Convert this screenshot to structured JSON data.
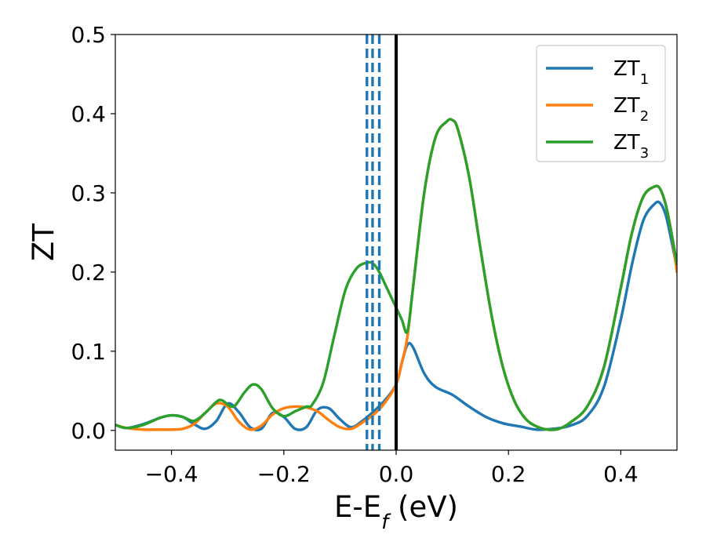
{
  "chart_data": {
    "type": "line",
    "title": "",
    "xlabel": {
      "main": "E-E",
      "subscript": "f",
      "suffix": " (eV)"
    },
    "ylabel": "ZT",
    "xlim": [
      -0.5,
      0.5
    ],
    "ylim": [
      -0.025,
      0.5
    ],
    "x_ticks": [
      -0.4,
      -0.2,
      0.0,
      0.2,
      0.4
    ],
    "x_tick_labels": [
      "−0.4",
      "−0.2",
      "0.0",
      "0.2",
      "0.4"
    ],
    "y_ticks": [
      0.0,
      0.1,
      0.2,
      0.3,
      0.4,
      0.5
    ],
    "y_tick_labels": [
      "0.0",
      "0.1",
      "0.2",
      "0.3",
      "0.4",
      "0.5"
    ],
    "grid": false,
    "legend_position": "top-right",
    "colors": {
      "ZT1": "#1f77b4",
      "ZT2": "#ff7f0e",
      "ZT3": "#2ca02c",
      "fermi_line": "#000000",
      "dashed_lines": "#1f77b4"
    },
    "reference_lines": {
      "solid_vertical": {
        "x": 0.0,
        "color": "#000000"
      },
      "dashed_vertical": [
        {
          "x": -0.052,
          "color": "#1f77b4"
        },
        {
          "x": -0.042,
          "color": "#1f77b4"
        },
        {
          "x": -0.03,
          "color": "#1f77b4"
        }
      ]
    },
    "series": [
      {
        "name": "ZT1",
        "label_main": "ZT",
        "label_sub": "1",
        "color": "#1f77b4",
        "x": [
          -0.5,
          -0.48,
          -0.45,
          -0.42,
          -0.4,
          -0.38,
          -0.36,
          -0.34,
          -0.32,
          -0.3,
          -0.28,
          -0.26,
          -0.24,
          -0.22,
          -0.2,
          -0.18,
          -0.16,
          -0.14,
          -0.12,
          -0.1,
          -0.08,
          -0.06,
          -0.04,
          -0.02,
          0.0,
          0.01,
          0.02,
          0.03,
          0.05,
          0.07,
          0.1,
          0.13,
          0.16,
          0.19,
          0.22,
          0.25,
          0.28,
          0.31,
          0.34,
          0.37,
          0.4,
          0.42,
          0.44,
          0.46,
          0.47,
          0.48,
          0.49,
          0.5
        ],
        "y": [
          0.007,
          0.003,
          0.008,
          0.016,
          0.019,
          0.017,
          0.008,
          0.002,
          0.012,
          0.034,
          0.023,
          0.004,
          0.002,
          0.022,
          0.017,
          0.002,
          0.004,
          0.026,
          0.028,
          0.014,
          0.004,
          0.012,
          0.024,
          0.038,
          0.058,
          0.085,
          0.108,
          0.105,
          0.072,
          0.055,
          0.045,
          0.03,
          0.017,
          0.009,
          0.005,
          0.001,
          0.002,
          0.006,
          0.018,
          0.055,
          0.14,
          0.21,
          0.265,
          0.286,
          0.287,
          0.272,
          0.24,
          0.205
        ]
      },
      {
        "name": "ZT2",
        "label_main": "ZT",
        "label_sub": "2",
        "color": "#ff7f0e",
        "x": [
          -0.5,
          -0.48,
          -0.45,
          -0.42,
          -0.4,
          -0.38,
          -0.36,
          -0.34,
          -0.32,
          -0.3,
          -0.28,
          -0.26,
          -0.24,
          -0.22,
          -0.2,
          -0.18,
          -0.16,
          -0.14,
          -0.12,
          -0.1,
          -0.08,
          -0.06,
          -0.04,
          -0.02,
          0.0,
          0.01,
          0.02,
          0.03,
          0.05,
          0.07,
          0.09,
          0.1,
          0.11,
          0.13,
          0.15,
          0.17,
          0.19,
          0.21,
          0.23,
          0.25,
          0.27,
          0.29,
          0.31,
          0.34,
          0.37,
          0.4,
          0.42,
          0.44,
          0.46,
          0.47,
          0.48,
          0.49,
          0.5
        ],
        "y": [
          0.007,
          0.003,
          0.001,
          0.001,
          0.001,
          0.002,
          0.008,
          0.022,
          0.034,
          0.03,
          0.011,
          0.001,
          0.006,
          0.02,
          0.028,
          0.03,
          0.029,
          0.024,
          0.013,
          0.004,
          0.002,
          0.01,
          0.02,
          0.035,
          0.058,
          0.085,
          0.118,
          0.18,
          0.3,
          0.37,
          0.39,
          0.392,
          0.38,
          0.32,
          0.23,
          0.145,
          0.08,
          0.038,
          0.015,
          0.005,
          0.001,
          0.002,
          0.01,
          0.03,
          0.08,
          0.18,
          0.25,
          0.295,
          0.308,
          0.305,
          0.285,
          0.25,
          0.2
        ]
      },
      {
        "name": "ZT3",
        "label_main": "ZT",
        "label_sub": "3",
        "color": "#2ca02c",
        "x": [
          -0.5,
          -0.48,
          -0.45,
          -0.42,
          -0.4,
          -0.38,
          -0.36,
          -0.34,
          -0.32,
          -0.31,
          -0.29,
          -0.27,
          -0.255,
          -0.24,
          -0.22,
          -0.2,
          -0.18,
          -0.16,
          -0.15,
          -0.13,
          -0.11,
          -0.09,
          -0.07,
          -0.05,
          -0.04,
          -0.03,
          -0.02,
          -0.01,
          0.0,
          0.01,
          0.02,
          0.03,
          0.05,
          0.07,
          0.09,
          0.1,
          0.11,
          0.13,
          0.15,
          0.17,
          0.19,
          0.21,
          0.23,
          0.25,
          0.27,
          0.29,
          0.31,
          0.34,
          0.37,
          0.4,
          0.42,
          0.44,
          0.46,
          0.47,
          0.48,
          0.49,
          0.5
        ],
        "y": [
          0.007,
          0.003,
          0.007,
          0.016,
          0.019,
          0.017,
          0.012,
          0.022,
          0.036,
          0.038,
          0.03,
          0.048,
          0.058,
          0.052,
          0.028,
          0.018,
          0.024,
          0.03,
          0.032,
          0.06,
          0.12,
          0.178,
          0.205,
          0.212,
          0.21,
          0.2,
          0.185,
          0.17,
          0.155,
          0.14,
          0.125,
          0.18,
          0.3,
          0.37,
          0.39,
          0.392,
          0.38,
          0.32,
          0.23,
          0.145,
          0.08,
          0.038,
          0.015,
          0.005,
          0.001,
          0.002,
          0.01,
          0.03,
          0.08,
          0.18,
          0.25,
          0.295,
          0.308,
          0.305,
          0.285,
          0.25,
          0.21
        ]
      }
    ]
  }
}
